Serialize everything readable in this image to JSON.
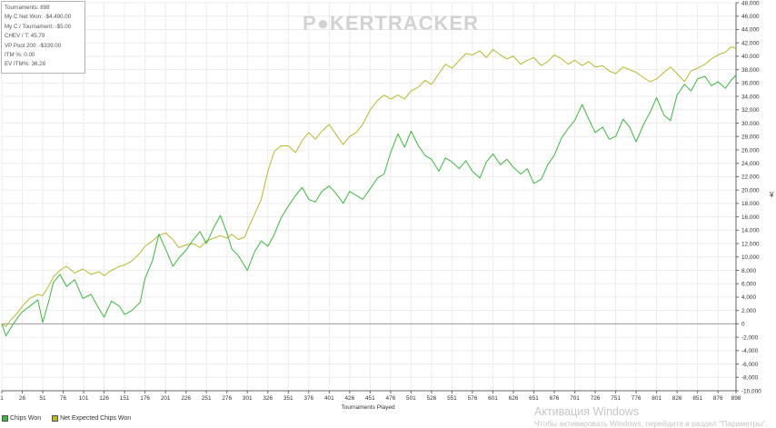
{
  "stats_box": {
    "tournaments": "Tournaments: 898",
    "net_won": "My C Net Won: -$4,490.00",
    "per_tournament": "My C / Tournament: -$5.00",
    "chev_t": "CHEV / T: 45.79",
    "vp_pool": "VP Pool 200: -$339.00",
    "itm": "ITM %: 0.00",
    "ev_itm": "EV ITM%: 36.28"
  },
  "watermark": {
    "left": "P",
    "right": "KERTRACKER"
  },
  "windows_activation": {
    "title": "Активация Windows",
    "subtitle": "Чтобы активировать Windows, перейдите в раздел \"Параметры\"."
  },
  "side_glyph": "¥",
  "chart_data": {
    "type": "line",
    "title": "",
    "xlabel": "Tournaments Played",
    "ylabel": "",
    "xlim": [
      1,
      898
    ],
    "ylim": [
      -10000,
      48000
    ],
    "grid": true,
    "legend_position": "bottom-left",
    "x_ticks": [
      1,
      26,
      51,
      76,
      101,
      126,
      151,
      176,
      201,
      226,
      251,
      276,
      301,
      326,
      351,
      376,
      401,
      426,
      451,
      476,
      501,
      526,
      551,
      576,
      601,
      626,
      651,
      676,
      701,
      726,
      751,
      776,
      801,
      826,
      851,
      876,
      898
    ],
    "y_ticks": [
      -10000,
      -8000,
      -6000,
      -4000,
      -2000,
      0,
      2000,
      4000,
      6000,
      8000,
      10000,
      12000,
      14000,
      16000,
      18000,
      20000,
      22000,
      24000,
      26000,
      28000,
      30000,
      32000,
      34000,
      36000,
      38000,
      40000,
      42000,
      44000,
      46000,
      48000
    ],
    "y_tick_labels": [
      "-10,000",
      "-8,000",
      "-6,000",
      "-4,000",
      "-2,000",
      "0",
      "2,000",
      "4,000",
      "6,000",
      "8,000",
      "10,000",
      "12,000",
      "14,000",
      "16,000",
      "18,000",
      "20,000",
      "22,000",
      "24,000",
      "26,000",
      "28,000",
      "30,000",
      "32,000",
      "34,000",
      "36,000",
      "38,000",
      "40,000",
      "42,000",
      "44,000",
      "46,000",
      "48,000"
    ],
    "series": [
      {
        "name": "Chips Won",
        "color": "#3cb83c",
        "x": [
          1,
          6,
          12,
          20,
          26,
          35,
          45,
          51,
          58,
          64,
          72,
          80,
          90,
          100,
          110,
          120,
          126,
          135,
          145,
          151,
          160,
          170,
          176,
          185,
          193,
          201,
          210,
          217,
          226,
          235,
          243,
          251,
          260,
          268,
          276,
          282,
          290,
          298,
          301,
          310,
          318,
          326,
          334,
          342,
          351,
          360,
          368,
          376,
          384,
          392,
          401,
          410,
          418,
          426,
          434,
          442,
          451,
          460,
          468,
          476,
          485,
          493,
          501,
          510,
          518,
          526,
          535,
          543,
          551,
          560,
          568,
          576,
          585,
          593,
          601,
          610,
          618,
          626,
          635,
          643,
          651,
          660,
          668,
          676,
          685,
          693,
          701,
          710,
          718,
          726,
          735,
          743,
          751,
          760,
          768,
          776,
          785,
          793,
          801,
          810,
          818,
          826,
          835,
          843,
          851,
          860,
          868,
          876,
          885,
          892,
          898
        ],
        "y": [
          0,
          -1800,
          -600,
          900,
          1800,
          2600,
          3600,
          200,
          3200,
          6200,
          7400,
          5600,
          6600,
          3800,
          4400,
          2200,
          1000,
          3400,
          2600,
          1400,
          2000,
          3200,
          6800,
          9400,
          13400,
          11200,
          8600,
          9800,
          11000,
          12600,
          13800,
          12000,
          14400,
          16200,
          13600,
          11200,
          10200,
          8600,
          8000,
          10800,
          12400,
          11600,
          13400,
          15800,
          17600,
          19200,
          20400,
          18600,
          18200,
          19800,
          20600,
          19400,
          18000,
          19800,
          19200,
          18600,
          20200,
          21800,
          22400,
          25600,
          28400,
          26400,
          28800,
          26600,
          25200,
          24600,
          22800,
          24800,
          24200,
          23200,
          24400,
          22800,
          21800,
          24200,
          25400,
          23800,
          24600,
          23400,
          22400,
          23200,
          21000,
          21600,
          23800,
          25200,
          27800,
          29200,
          30400,
          32800,
          30600,
          28600,
          29400,
          27600,
          28000,
          30600,
          29400,
          27200,
          29800,
          31600,
          33800,
          31200,
          30400,
          34200,
          35800,
          34800,
          36600,
          37000,
          35600,
          36200,
          35200,
          36400,
          37200
        ]
      },
      {
        "name": "Net Expected Chips Won",
        "color": "#b8b830",
        "x": [
          1,
          6,
          12,
          20,
          26,
          35,
          45,
          51,
          58,
          64,
          72,
          80,
          90,
          100,
          110,
          120,
          126,
          135,
          145,
          151,
          160,
          170,
          176,
          185,
          193,
          201,
          210,
          217,
          226,
          235,
          243,
          251,
          260,
          268,
          276,
          282,
          290,
          298,
          301,
          310,
          318,
          326,
          334,
          342,
          351,
          360,
          368,
          376,
          384,
          392,
          401,
          410,
          418,
          426,
          434,
          442,
          451,
          460,
          468,
          476,
          485,
          493,
          501,
          510,
          518,
          526,
          535,
          543,
          551,
          560,
          568,
          576,
          585,
          593,
          601,
          610,
          618,
          626,
          635,
          643,
          651,
          660,
          668,
          676,
          685,
          693,
          701,
          710,
          718,
          726,
          735,
          743,
          751,
          760,
          768,
          776,
          785,
          793,
          801,
          810,
          818,
          826,
          835,
          843,
          851,
          860,
          868,
          876,
          885,
          892,
          898
        ],
        "y": [
          0,
          -400,
          600,
          1600,
          2600,
          3800,
          4400,
          4200,
          5600,
          7000,
          8000,
          8600,
          7600,
          8200,
          7400,
          7800,
          7200,
          8000,
          8600,
          8800,
          9400,
          10600,
          11600,
          12400,
          13200,
          13600,
          12600,
          11400,
          11800,
          12000,
          11400,
          12400,
          12800,
          13200,
          12800,
          13400,
          12600,
          13000,
          14000,
          16400,
          18600,
          22800,
          25800,
          26600,
          26600,
          25600,
          27400,
          28600,
          27600,
          28800,
          29800,
          28200,
          26800,
          28000,
          28600,
          29800,
          32000,
          33400,
          34200,
          33600,
          34200,
          33600,
          34800,
          35400,
          36400,
          35800,
          37400,
          38800,
          38200,
          39400,
          40400,
          40200,
          40800,
          39800,
          41000,
          40200,
          39600,
          40000,
          38800,
          39400,
          39800,
          38600,
          39200,
          40200,
          39600,
          38800,
          39400,
          38600,
          39200,
          38400,
          38600,
          37800,
          37400,
          38400,
          38000,
          37600,
          36800,
          36200,
          36600,
          37600,
          38400,
          37400,
          36200,
          37800,
          38200,
          38800,
          39600,
          40200,
          40600,
          41400,
          41200
        ]
      }
    ]
  }
}
